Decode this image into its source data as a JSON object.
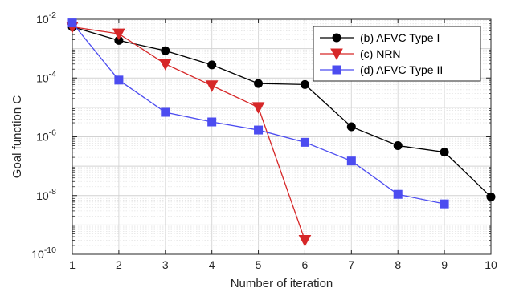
{
  "chart_data": {
    "type": "line",
    "xlabel": "Number of iteration",
    "ylabel": "Goal function C",
    "yscale": "log",
    "xlim": [
      1,
      10
    ],
    "ylim": [
      1e-10,
      0.01
    ],
    "grid": true,
    "legend_position": "top-right",
    "x_ticks": [
      1,
      2,
      3,
      4,
      5,
      6,
      7,
      8,
      9,
      10
    ],
    "y_ticks": [
      {
        "base": "10",
        "exp": "-10",
        "value": 1e-10
      },
      {
        "base": "10",
        "exp": "-8",
        "value": 1e-08
      },
      {
        "base": "10",
        "exp": "-6",
        "value": 1e-06
      },
      {
        "base": "10",
        "exp": "-4",
        "value": 0.0001
      },
      {
        "base": "10",
        "exp": "-2",
        "value": 0.01
      }
    ],
    "series": [
      {
        "name": "(b) AFVC Type I",
        "color": "#000000",
        "marker": "circle",
        "x": [
          1,
          2,
          3,
          4,
          5,
          6,
          7,
          8,
          9,
          10
        ],
        "values": [
          0.0055,
          0.0019,
          0.00085,
          0.00028,
          6.5e-05,
          6e-05,
          2.2e-06,
          5e-07,
          3e-07,
          9e-09
        ]
      },
      {
        "name": "(c) NRN",
        "color": "#d62728",
        "marker": "triangle-down",
        "x": [
          1,
          2,
          3,
          4,
          5,
          6
        ],
        "values": [
          0.0055,
          0.0032,
          0.0003,
          5.5e-05,
          1e-05,
          3e-10
        ]
      },
      {
        "name": "(d) AFVC Type II",
        "color": "#4c4cf0",
        "marker": "square",
        "x": [
          1,
          2,
          3,
          4,
          5,
          6,
          7,
          8,
          9
        ],
        "values": [
          0.0075,
          8.5e-05,
          6.8e-06,
          3.2e-06,
          1.7e-06,
          6.5e-07,
          1.5e-07,
          1.1e-08,
          5.2e-09
        ]
      }
    ]
  }
}
